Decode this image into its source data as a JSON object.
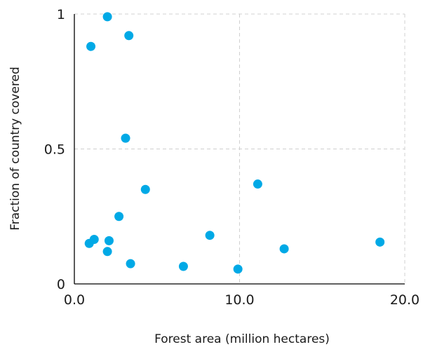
{
  "chart_data": {
    "type": "scatter",
    "title": "",
    "xlabel": "Forest area (million hectares)",
    "ylabel": "Fraction of country covered",
    "xlim": [
      0,
      20
    ],
    "ylim": [
      0,
      1
    ],
    "x_ticks": [
      0,
      10,
      20
    ],
    "x_tick_labels": [
      "0.0",
      "10.0",
      "20.0"
    ],
    "y_ticks": [
      0,
      0.5,
      1
    ],
    "y_tick_labels": [
      "0",
      "0.5",
      "1"
    ],
    "grid": true,
    "legend": "none",
    "point_color": "#00a9e6",
    "points": [
      {
        "x": 2.0,
        "y": 0.99
      },
      {
        "x": 3.3,
        "y": 0.92
      },
      {
        "x": 1.0,
        "y": 0.88
      },
      {
        "x": 3.1,
        "y": 0.54
      },
      {
        "x": 4.3,
        "y": 0.35
      },
      {
        "x": 11.1,
        "y": 0.37
      },
      {
        "x": 2.7,
        "y": 0.25
      },
      {
        "x": 1.2,
        "y": 0.165
      },
      {
        "x": 0.9,
        "y": 0.15
      },
      {
        "x": 2.1,
        "y": 0.16
      },
      {
        "x": 2.0,
        "y": 0.12
      },
      {
        "x": 8.2,
        "y": 0.18
      },
      {
        "x": 18.5,
        "y": 0.155
      },
      {
        "x": 12.7,
        "y": 0.13
      },
      {
        "x": 3.4,
        "y": 0.075
      },
      {
        "x": 6.6,
        "y": 0.065
      },
      {
        "x": 9.9,
        "y": 0.055
      }
    ]
  }
}
